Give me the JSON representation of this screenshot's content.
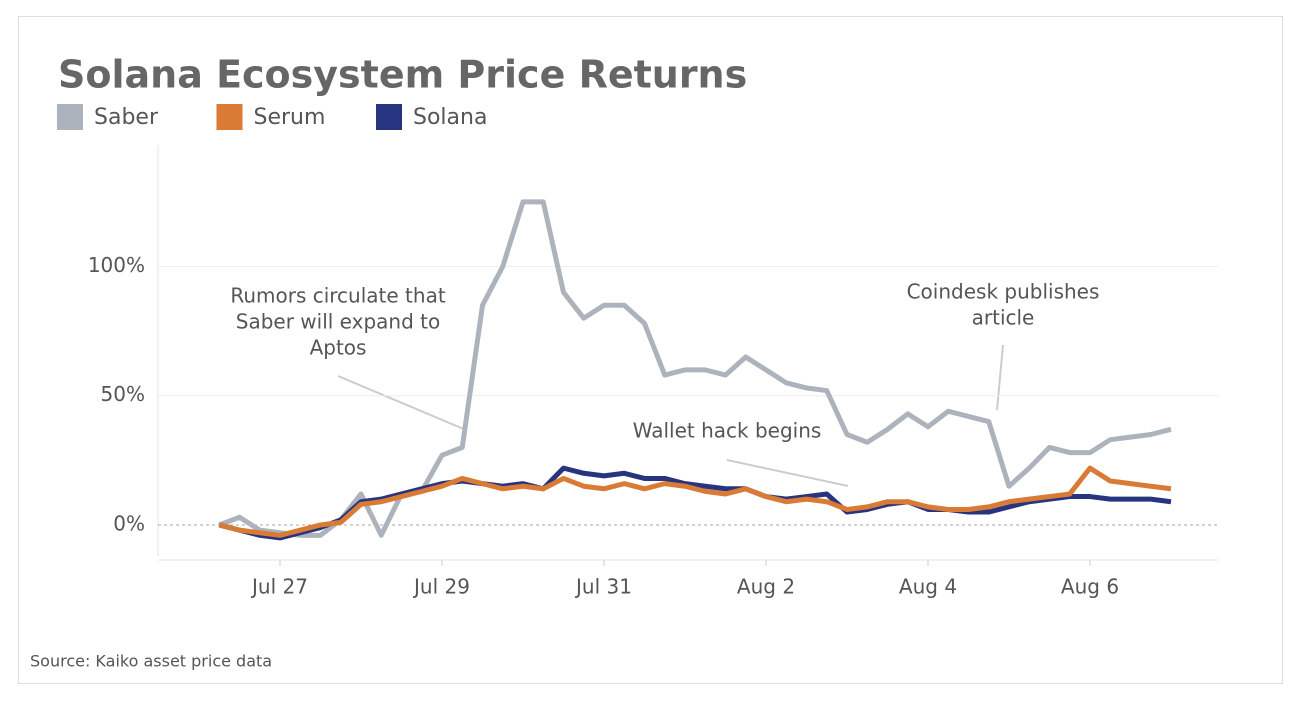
{
  "chart_data": {
    "type": "line",
    "title": "Solana Ecosystem Price Returns",
    "source": "Source: Kaiko asset price data",
    "legend": "top-left",
    "grid": true,
    "categories": [
      null,
      null,
      null,
      "Jul 27",
      null,
      null,
      null,
      null,
      null,
      null,
      null,
      "Jul 29",
      null,
      null,
      null,
      null,
      null,
      null,
      null,
      "Jul 31",
      null,
      null,
      null,
      null,
      null,
      null,
      null,
      "Aug 2",
      null,
      null,
      null,
      null,
      null,
      null,
      null,
      "Aug 4",
      null,
      null,
      null,
      null,
      null,
      null,
      null,
      "Aug 6",
      null,
      null,
      null,
      null
    ],
    "ylim": [
      -12,
      147
    ],
    "yticks": [
      {
        "value": 0,
        "label": "0%"
      },
      {
        "value": 50,
        "label": "50%"
      },
      {
        "value": 100,
        "label": "100%"
      }
    ],
    "series": [
      {
        "name": "Saber",
        "color": "#adb3bd",
        "values": [
          0,
          3,
          -2,
          -3,
          -4,
          -4,
          2,
          12,
          -4,
          12,
          13,
          27,
          30,
          85,
          100,
          125,
          125,
          90,
          80,
          85,
          85,
          78,
          58,
          60,
          60,
          58,
          65,
          60,
          55,
          53,
          52,
          35,
          32,
          37,
          43,
          38,
          44,
          42,
          40,
          15,
          22,
          30,
          28,
          28,
          33,
          34,
          35,
          37
        ]
      },
      {
        "name": "Serum",
        "color": "#d97a35",
        "values": [
          0,
          -2,
          -3,
          -4,
          -2,
          0,
          1,
          8,
          9,
          11,
          13,
          15,
          18,
          16,
          14,
          15,
          14,
          18,
          15,
          14,
          16,
          14,
          16,
          15,
          13,
          12,
          14,
          11,
          9,
          10,
          9,
          6,
          7,
          9,
          9,
          7,
          6,
          6,
          7,
          9,
          10,
          11,
          12,
          22,
          17,
          16,
          15,
          14
        ]
      },
      {
        "name": "Solana",
        "color": "#27347f",
        "values": [
          0,
          -2,
          -4,
          -5,
          -3,
          -1,
          2,
          9,
          10,
          12,
          14,
          16,
          17,
          16,
          15,
          16,
          14,
          22,
          20,
          19,
          20,
          18,
          18,
          16,
          15,
          14,
          14,
          11,
          10,
          11,
          12,
          5,
          6,
          8,
          9,
          6,
          6,
          5,
          5,
          7,
          9,
          10,
          11,
          11,
          10,
          10,
          10,
          9
        ]
      }
    ],
    "annotations": [
      {
        "lines": [
          "Rumors circulate that",
          "Saber will expand to",
          "Aptos"
        ]
      },
      {
        "lines": [
          "Coindesk publishes",
          "article"
        ]
      },
      {
        "lines": [
          "Wallet hack begins"
        ]
      }
    ]
  }
}
